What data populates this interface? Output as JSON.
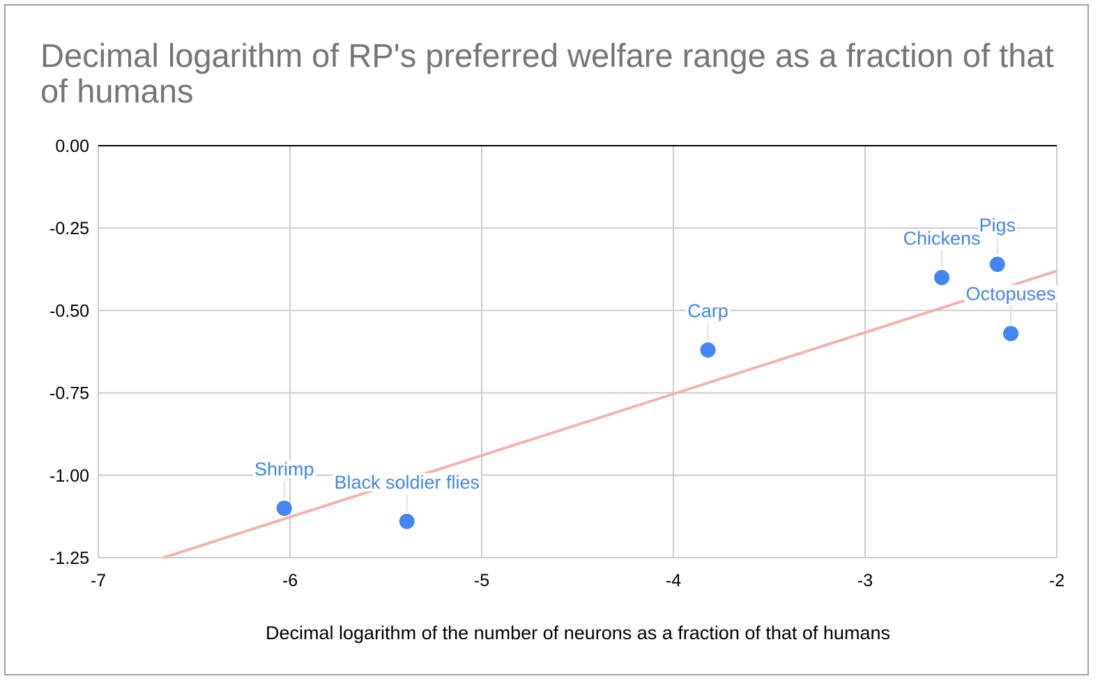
{
  "chart_data": {
    "type": "scatter",
    "title": "Decimal logarithm of RP's preferred welfare range as a fraction of that of humans",
    "xlabel": "Decimal logarithm of the number of neurons as a fraction of that of humans",
    "ylabel": "",
    "xlim": [
      -7,
      -2
    ],
    "ylim": [
      -1.25,
      0
    ],
    "x_ticks": [
      -7,
      -6,
      -5,
      -4,
      -3,
      -2
    ],
    "x_tick_labels": [
      "-7",
      "-6",
      "-5",
      "-4",
      "-3",
      "-2"
    ],
    "y_ticks": [
      0,
      -0.25,
      -0.5,
      -0.75,
      -1,
      -1.25
    ],
    "y_tick_labels": [
      "0.00",
      "-0.25",
      "-0.50",
      "-0.75",
      "-1.00",
      "-1.25"
    ],
    "grid": true,
    "legend": "none",
    "points": [
      {
        "label": "Shrimp",
        "x": -6.03,
        "y": -1.1
      },
      {
        "label": "Black soldier flies",
        "x": -5.39,
        "y": -1.14
      },
      {
        "label": "Carp",
        "x": -3.82,
        "y": -0.62
      },
      {
        "label": "Chickens",
        "x": -2.6,
        "y": -0.4
      },
      {
        "label": "Pigs",
        "x": -2.31,
        "y": -0.36
      },
      {
        "label": "Octopuses",
        "x": -2.24,
        "y": -0.57
      }
    ],
    "trendline": {
      "type": "linear",
      "x": [
        -6.66,
        -2.0
      ],
      "y": [
        -1.25,
        -0.38
      ]
    },
    "colors": {
      "points": "#4285f4",
      "labels": "#4285f4",
      "trendline": "#f4b2ac",
      "grid": "#cccccc",
      "title": "#757575",
      "zero_line": "#000000"
    }
  }
}
